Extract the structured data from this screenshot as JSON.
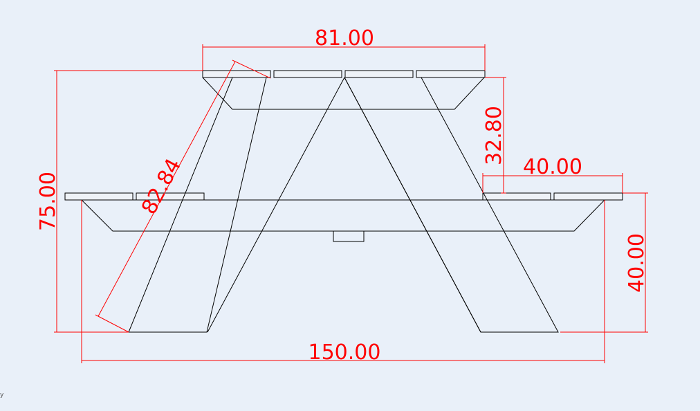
{
  "dimensions": {
    "top_width": "81.00",
    "top_to_seat_height": "32.80",
    "seat_width": "40.00",
    "seat_height": "40.00",
    "total_height": "75.00",
    "leg_length": "82.84",
    "total_width": "150.00"
  },
  "corner_label": "y",
  "colors": {
    "background": "#e9f0f9",
    "dimension": "#ff0000",
    "outline": "#000000"
  }
}
